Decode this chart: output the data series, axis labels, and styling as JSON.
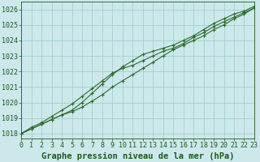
{
  "background_color": "#cce8ea",
  "plot_bg_color": "#cce8ea",
  "grid_color": "#99cccc",
  "line_color": "#2d6a2d",
  "marker_color": "#2d6a2d",
  "xlabel": "Graphe pression niveau de la mer (hPa)",
  "xlabel_fontsize": 7.5,
  "xlabel_color": "#1a5c1a",
  "ylabel_ticks": [
    1018,
    1019,
    1020,
    1021,
    1022,
    1023,
    1024,
    1025,
    1026
  ],
  "xlim": [
    0,
    23
  ],
  "ylim": [
    1017.7,
    1026.5
  ],
  "xticks": [
    0,
    1,
    2,
    3,
    4,
    5,
    6,
    7,
    8,
    9,
    10,
    11,
    12,
    13,
    14,
    15,
    16,
    17,
    18,
    19,
    20,
    21,
    22,
    23
  ],
  "line1_x": [
    0,
    1,
    2,
    3,
    4,
    5,
    6,
    7,
    8,
    9,
    10,
    11,
    12,
    13,
    14,
    15,
    16,
    17,
    18,
    19,
    20,
    21,
    22,
    23
  ],
  "line1_y": [
    1018.0,
    1018.3,
    1018.6,
    1018.9,
    1019.2,
    1019.4,
    1019.7,
    1020.1,
    1020.5,
    1021.0,
    1021.4,
    1021.8,
    1022.2,
    1022.6,
    1023.0,
    1023.4,
    1023.7,
    1024.0,
    1024.3,
    1024.7,
    1025.0,
    1025.4,
    1025.7,
    1026.1
  ],
  "line2_x": [
    0,
    1,
    2,
    3,
    4,
    5,
    6,
    7,
    8,
    9,
    10,
    11,
    12,
    13,
    14,
    15,
    16,
    17,
    18,
    19,
    20,
    21,
    22,
    23
  ],
  "line2_y": [
    1018.0,
    1018.4,
    1018.7,
    1019.1,
    1019.5,
    1019.9,
    1020.4,
    1020.9,
    1021.4,
    1021.9,
    1022.2,
    1022.4,
    1022.7,
    1023.0,
    1023.3,
    1023.5,
    1023.8,
    1024.2,
    1024.5,
    1024.9,
    1025.2,
    1025.5,
    1025.8,
    1026.1
  ],
  "line3_x": [
    0,
    1,
    2,
    3,
    4,
    5,
    6,
    7,
    8,
    9,
    10,
    11,
    12,
    13,
    14,
    15,
    16,
    17,
    18,
    19,
    20,
    21,
    22,
    23
  ],
  "line3_y": [
    1018.0,
    1018.3,
    1018.6,
    1018.9,
    1019.2,
    1019.5,
    1020.0,
    1020.6,
    1021.2,
    1021.8,
    1022.3,
    1022.7,
    1023.1,
    1023.3,
    1023.5,
    1023.7,
    1024.0,
    1024.3,
    1024.7,
    1025.1,
    1025.4,
    1025.7,
    1025.9,
    1026.2
  ],
  "tick_fontsize": 6,
  "tick_color": "#1a5c1a"
}
